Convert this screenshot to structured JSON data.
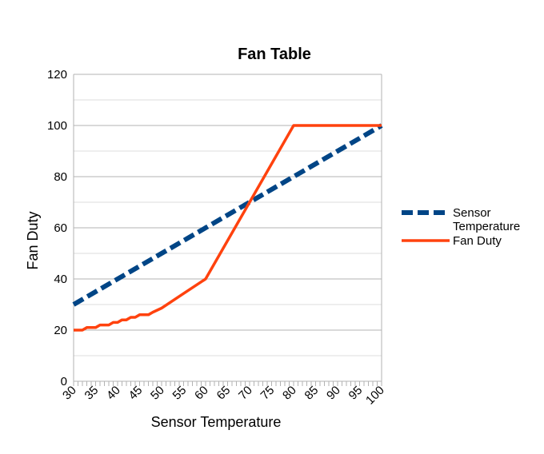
{
  "chart_data": {
    "type": "line",
    "title": "Fan Table",
    "xlabel": "Sensor Temperature",
    "ylabel": "Fan Duty",
    "xlim": [
      30,
      100
    ],
    "ylim": [
      0,
      120
    ],
    "x_ticks": [
      30,
      35,
      40,
      45,
      50,
      55,
      60,
      65,
      70,
      75,
      80,
      85,
      90,
      95,
      100
    ],
    "y_ticks": [
      0,
      20,
      40,
      60,
      80,
      100,
      120
    ],
    "grid": true,
    "legend_position": "right",
    "series": [
      {
        "name": "Sensor Temperature",
        "legend_lines": [
          "Sensor",
          "Temperature"
        ],
        "color": "#004586",
        "style": "dashed",
        "x": [
          30,
          100
        ],
        "y": [
          30,
          100
        ]
      },
      {
        "name": "Fan Duty",
        "legend_lines": [
          "Fan Duty"
        ],
        "color": "#ff420e",
        "style": "solid",
        "x": [
          30,
          31,
          32,
          33,
          34,
          35,
          36,
          37,
          38,
          39,
          40,
          41,
          42,
          43,
          44,
          45,
          46,
          47,
          48,
          50,
          55,
          60,
          70,
          80,
          100
        ],
        "y": [
          20,
          20,
          20,
          21,
          21,
          21,
          22,
          22,
          22,
          23,
          23,
          24,
          24,
          25,
          25,
          26,
          26,
          26,
          27,
          28.6,
          34.3,
          40,
          70,
          100,
          100
        ]
      }
    ]
  }
}
